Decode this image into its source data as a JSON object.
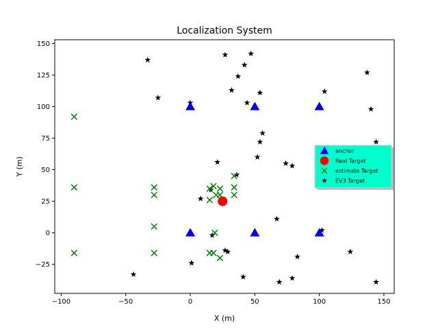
{
  "chart_data": {
    "type": "scatter",
    "title": "Localization System",
    "xlabel": "X (m)",
    "ylabel": "Y (m)",
    "xlim": [
      -105,
      158
    ],
    "ylim": [
      -48,
      153
    ],
    "xticks": [
      -100,
      -50,
      0,
      50,
      100,
      150
    ],
    "yticks": [
      -25,
      0,
      25,
      50,
      75,
      100,
      125,
      150
    ],
    "grid": false,
    "legend_position": "right",
    "legend_bg": "#00ffcc",
    "series": [
      {
        "name": "anchor",
        "marker": "triangle",
        "color": "#0000ff",
        "points": [
          [
            0,
            100
          ],
          [
            50,
            100
          ],
          [
            100,
            100
          ],
          [
            0,
            0
          ],
          [
            50,
            0
          ],
          [
            100,
            0
          ]
        ]
      },
      {
        "name": "Real Target",
        "marker": "circle",
        "color": "#ff0000",
        "points": [
          [
            25,
            25
          ]
        ]
      },
      {
        "name": "estimate Target",
        "marker": "x",
        "color": "#008000",
        "points": [
          [
            -90,
            92
          ],
          [
            -90,
            36
          ],
          [
            -90,
            -16
          ],
          [
            -28,
            36
          ],
          [
            -28,
            30
          ],
          [
            -28,
            5
          ],
          [
            -28,
            -16
          ],
          [
            15,
            35
          ],
          [
            15,
            26
          ],
          [
            18,
            37
          ],
          [
            20,
            30
          ],
          [
            23,
            35
          ],
          [
            23,
            30
          ],
          [
            34,
            45
          ],
          [
            34,
            36
          ],
          [
            34,
            30
          ],
          [
            19,
            0
          ],
          [
            15,
            -16
          ],
          [
            18,
            -16
          ],
          [
            23,
            -20
          ]
        ]
      },
      {
        "name": "EV3 Target",
        "marker": "star",
        "color": "#000000",
        "points": [
          [
            27,
            141
          ],
          [
            47,
            142
          ],
          [
            -33,
            137
          ],
          [
            42,
            133
          ],
          [
            37,
            124
          ],
          [
            137,
            127
          ],
          [
            32,
            113
          ],
          [
            54,
            111
          ],
          [
            104,
            112
          ],
          [
            -25,
            107
          ],
          [
            0,
            103
          ],
          [
            44,
            103
          ],
          [
            140,
            98
          ],
          [
            56,
            79
          ],
          [
            54,
            72
          ],
          [
            144,
            72
          ],
          [
            52,
            60
          ],
          [
            21,
            56
          ],
          [
            74,
            55
          ],
          [
            79,
            53
          ],
          [
            36,
            46
          ],
          [
            16,
            34
          ],
          [
            8,
            27
          ],
          [
            67,
            11
          ],
          [
            17,
            -2
          ],
          [
            102,
            2
          ],
          [
            27,
            -14
          ],
          [
            29,
            -15
          ],
          [
            83,
            -19
          ],
          [
            124,
            -15
          ],
          [
            1,
            -24
          ],
          [
            -44,
            -33
          ],
          [
            41,
            -35
          ],
          [
            69,
            -39
          ],
          [
            79,
            -36
          ],
          [
            144,
            -39
          ]
        ]
      }
    ]
  }
}
